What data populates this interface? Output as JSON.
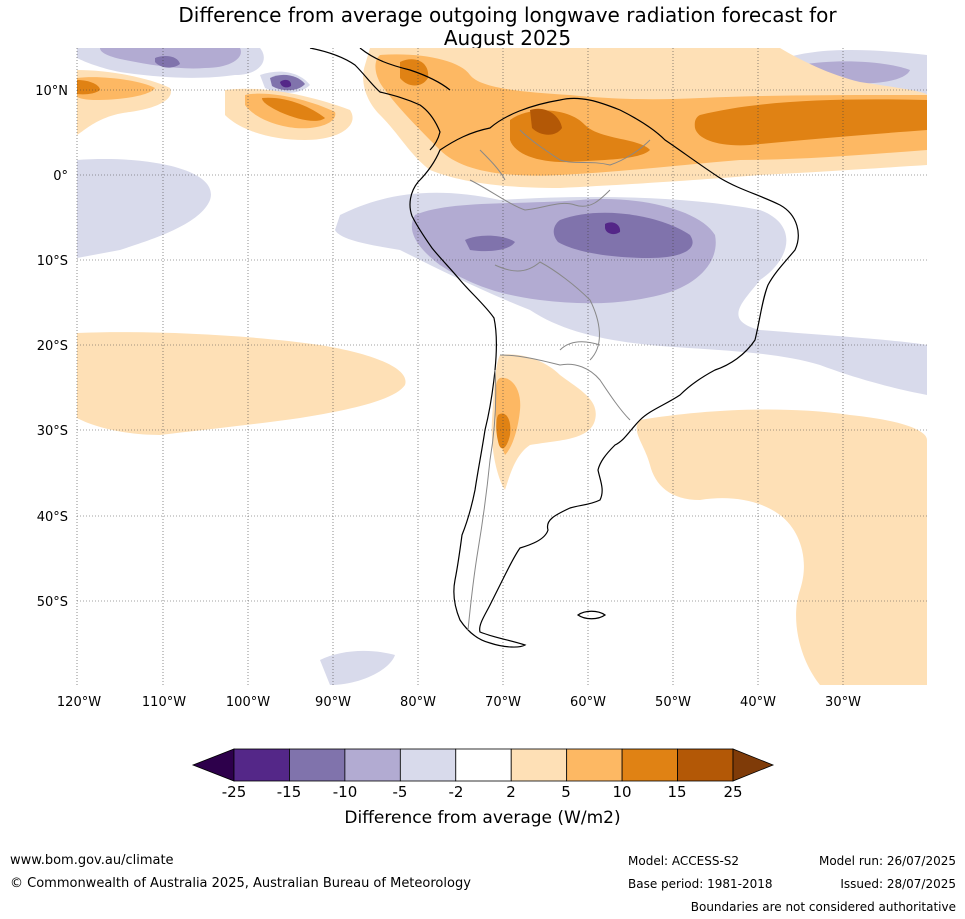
{
  "title_line1": "Difference from average outgoing longwave radiation forecast for",
  "title_line2": "August 2025",
  "lat_labels": [
    "10°N",
    "0°",
    "10°S",
    "20°S",
    "30°S",
    "40°S",
    "50°S"
  ],
  "lon_labels": [
    "120°W",
    "110°W",
    "100°W",
    "90°W",
    "80°W",
    "70°W",
    "60°W",
    "50°W",
    "40°W",
    "30°W"
  ],
  "colorbar": {
    "ticks": [
      "-25",
      "-15",
      "-10",
      "-5",
      "-2",
      "2",
      "5",
      "10",
      "15",
      "25"
    ],
    "colors": [
      "#2d004b",
      "#542788",
      "#8073ac",
      "#b2abd2",
      "#d8daeb",
      "#ffffff",
      "#fee0b6",
      "#fdb863",
      "#e08214",
      "#b35806",
      "#7f3b08"
    ],
    "title": "Difference from average (W/m2)"
  },
  "footer": {
    "url": "www.bom.gov.au/climate",
    "copyright": "© Commonwealth of Australia 2025, Australian Bureau of Meteorology",
    "model": "Model: ACCESS-S2",
    "base_period": "Base period: 1981-2018",
    "model_run": "Model run: 26/07/2025",
    "issued": "Issued: 28/07/2025",
    "disclaimer": "Boundaries are not considered authoritative"
  }
}
